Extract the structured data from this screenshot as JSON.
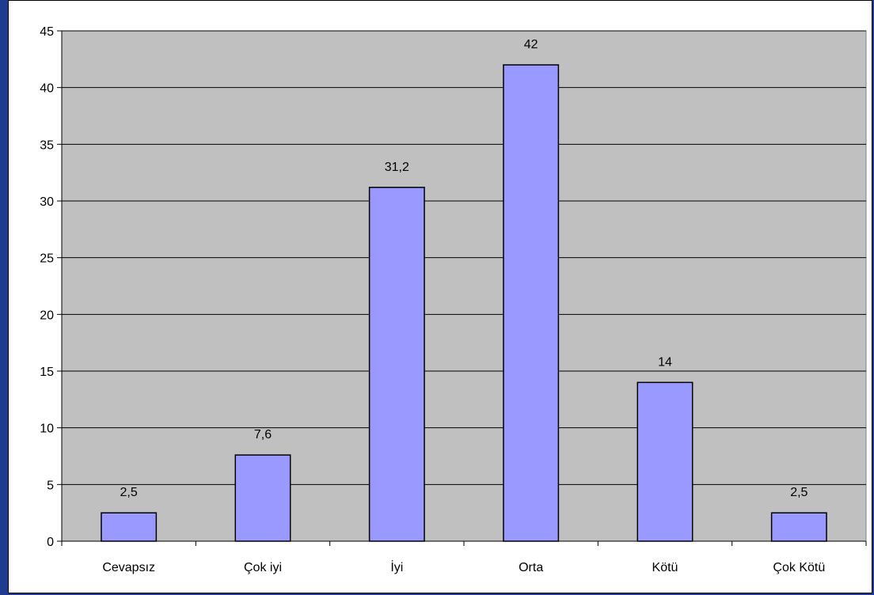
{
  "chart_data": {
    "type": "bar",
    "categories": [
      "Cevapsız",
      "Çok iyi",
      "İyi",
      "Orta",
      "Kötü",
      "Çok Kötü"
    ],
    "values": [
      2.5,
      7.6,
      31.2,
      42,
      14,
      2.5
    ],
    "data_labels": [
      "2,5",
      "7,6",
      "31,2",
      "42",
      "14",
      "2,5"
    ],
    "ylim": [
      0,
      45
    ],
    "yticks": [
      0,
      5,
      10,
      15,
      20,
      25,
      30,
      35,
      40,
      45
    ],
    "grid": true,
    "legend": "none",
    "colors": {
      "bar_fill": "#9999ff",
      "bar_stroke": "#000000",
      "plot_background": "#c0c0c0",
      "frame_outer": "#1f3c8f",
      "chart_background": "#ffffff"
    }
  }
}
